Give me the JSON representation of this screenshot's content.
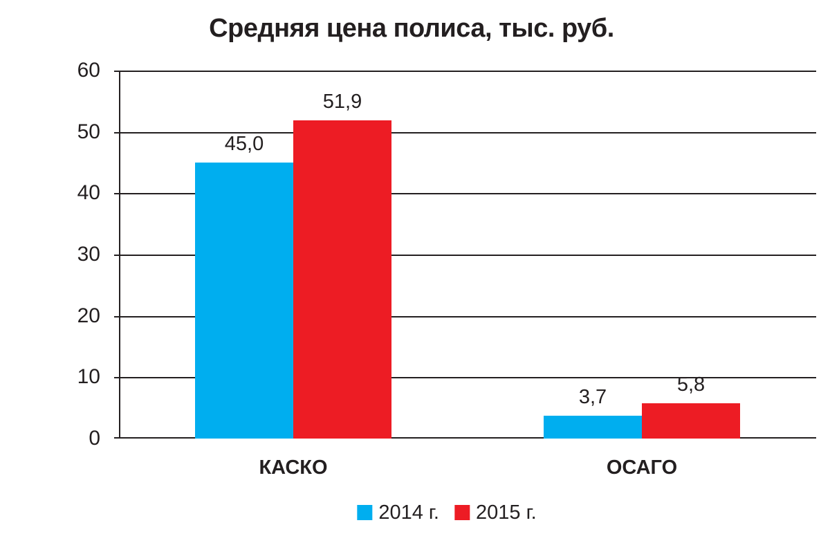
{
  "chart_data": {
    "type": "bar",
    "title": "Средняя цена полиса, тыс. руб.",
    "categories": [
      "КАСКО",
      "ОСАГО"
    ],
    "series": [
      {
        "name": "2014 г.",
        "color": "#00AEEF",
        "values": [
          45.0,
          3.7
        ],
        "value_labels": [
          "45,0",
          "3,7"
        ]
      },
      {
        "name": "2015 г.",
        "color": "#ED1C24",
        "values": [
          51.9,
          5.8
        ],
        "value_labels": [
          "51,9",
          "5,8"
        ]
      }
    ],
    "xlabel": "",
    "ylabel": "",
    "ylim": [
      0,
      60
    ],
    "y_step": 10,
    "y_tick_labels": [
      "0",
      "10",
      "20",
      "30",
      "40",
      "50",
      "60"
    ],
    "grid": "horizontal",
    "legend_position": "bottom",
    "colors": {
      "text": "#231F20",
      "axis_line": "#231F20",
      "background": "#FFFFFF"
    }
  }
}
